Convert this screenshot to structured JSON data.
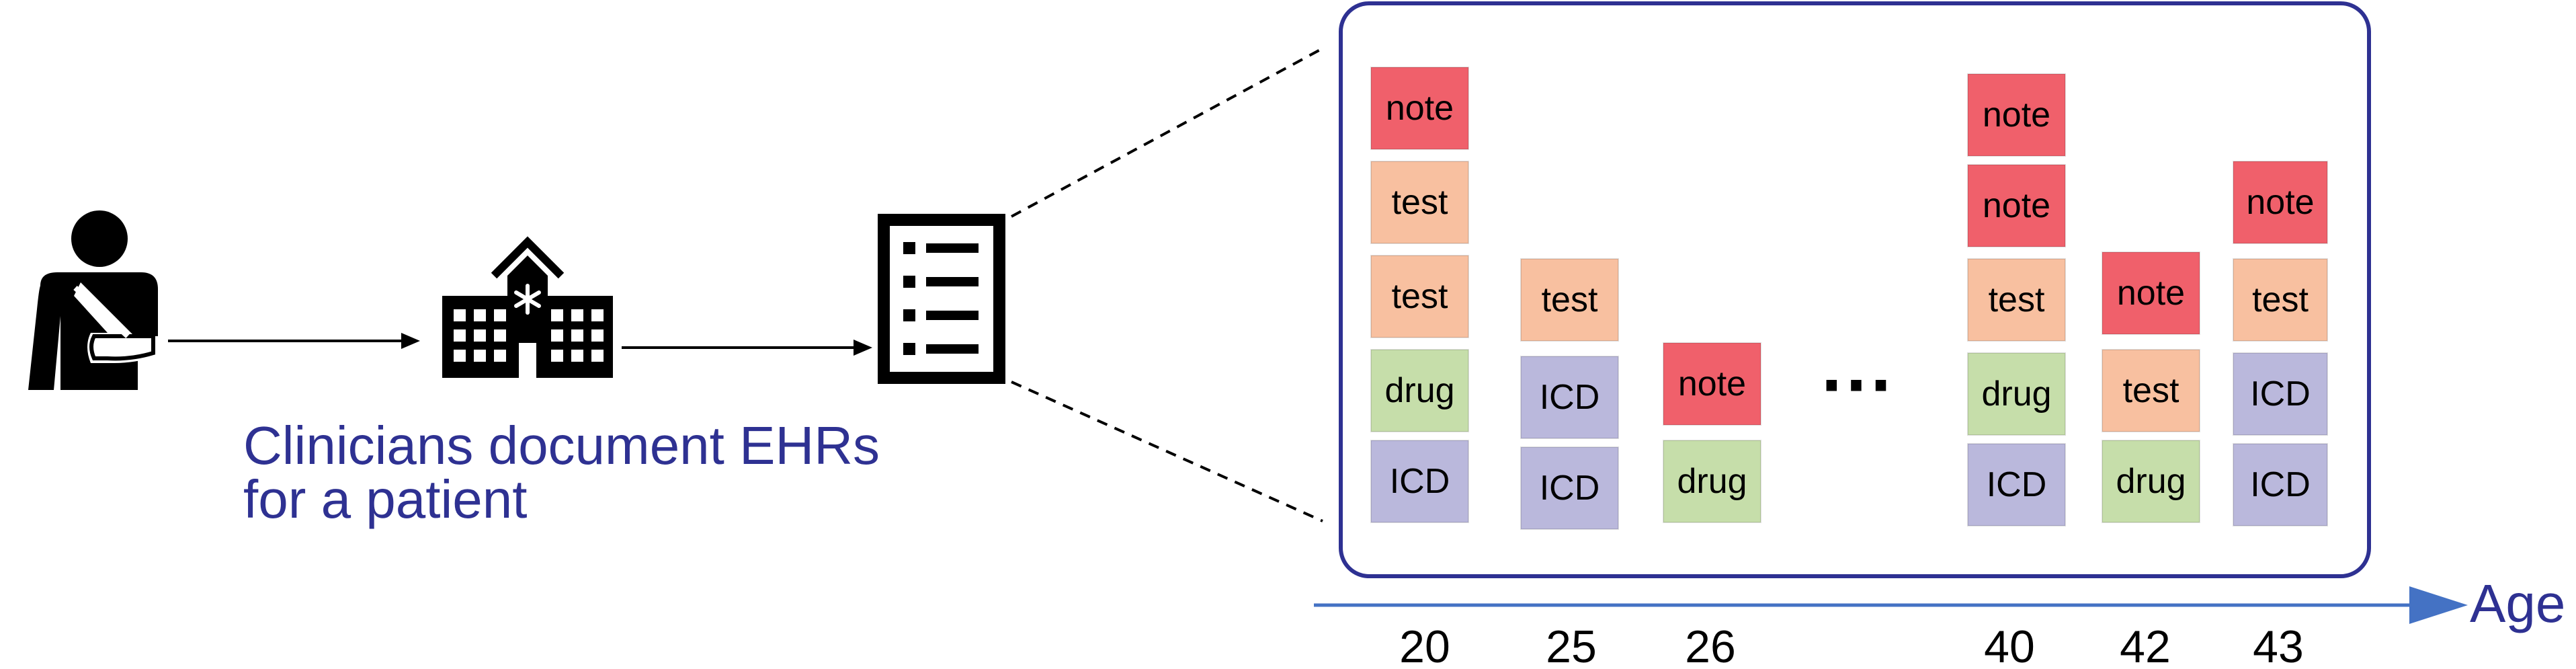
{
  "caption": {
    "line1": "Clinicians document EHRs",
    "line2": "for a patient"
  },
  "icons": {
    "patient": "injured-patient-icon",
    "hospital": "hospital-building-icon",
    "record": "ehr-document-icon"
  },
  "timeline": {
    "axis_label": "Age",
    "ellipsis": "···",
    "columns": [
      {
        "age": "20",
        "events": [
          "note",
          "test",
          "test",
          "drug",
          "ICD"
        ]
      },
      {
        "age": "25",
        "events": [
          "test",
          "ICD",
          "ICD"
        ]
      },
      {
        "age": "26",
        "events": [
          "note",
          "drug"
        ]
      },
      {
        "age": "40",
        "events": [
          "note",
          "note",
          "test",
          "drug",
          "ICD"
        ]
      },
      {
        "age": "42",
        "events": [
          "note",
          "test",
          "drug"
        ]
      },
      {
        "age": "43",
        "events": [
          "note",
          "test",
          "ICD",
          "ICD"
        ]
      }
    ]
  },
  "colors": {
    "note": "#f0606b",
    "test": "#f8c0a0",
    "drug": "#c6deaa",
    "ICD": "#bab8dc",
    "frame": "#2e3192",
    "caption": "#2e3192",
    "axis": "#4472c4",
    "icon": "#000000"
  }
}
